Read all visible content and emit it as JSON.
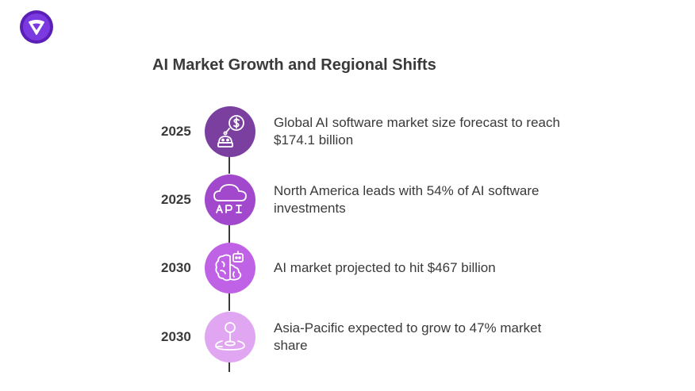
{
  "title": "AI Market Growth and Regional Shifts",
  "colors": {
    "node1": "#7b3fa0",
    "node2": "#a148cc",
    "node3": "#c062e6",
    "node4": "#e0a6f1",
    "text": "#3a3a3a",
    "logo": "#6a22c9"
  },
  "items": [
    {
      "year": "2025",
      "text": "Global AI software market size forecast to reach $174.1 billion",
      "icon": "robot-dollar-icon"
    },
    {
      "year": "2025",
      "text": "North America leads with 54% of AI software investments",
      "icon": "cloud-api-icon"
    },
    {
      "year": "2030",
      "text": "AI market projected to hit $467 billion",
      "icon": "brain-robot-icon"
    },
    {
      "year": "2030",
      "text": "Asia-Pacific expected to grow to 47% market share",
      "icon": "location-pin-icon"
    }
  ]
}
